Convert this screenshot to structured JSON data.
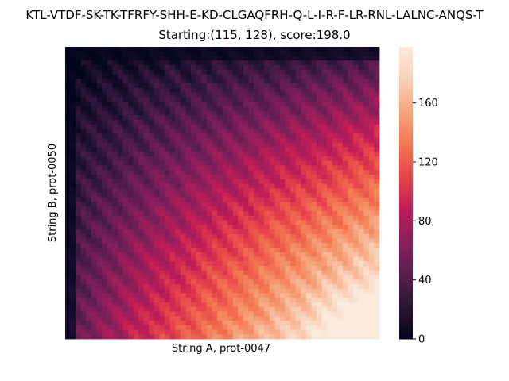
{
  "chart_data": {
    "type": "heatmap",
    "title_line1": "KTL-VTDF-SK-TK-TFRFY-SHH-E-KD-CLGAQFRH-Q-L-I-R-F-LR-RNL-LALNC-ANQS-T",
    "title_line2": "Starting:(115, 128), score:198.0",
    "xlabel": "String A, prot-0047",
    "ylabel": "String B, prot-0050",
    "rows": 128,
    "cols": 115,
    "value_range": [
      0,
      198
    ],
    "max_cell": {
      "col": 115,
      "row": 128,
      "value": 198.0
    },
    "colorbar": {
      "ticks": [
        0,
        40,
        80,
        120,
        160
      ],
      "colormap": "rocket",
      "stops": [
        "#03051a",
        "#2b1637",
        "#5a1e4e",
        "#8a1f5b",
        "#c01c57",
        "#e8454a",
        "#f37651",
        "#f6a47b",
        "#fad1b8",
        "#faebdd"
      ]
    },
    "axis_ticks_shown": false
  }
}
